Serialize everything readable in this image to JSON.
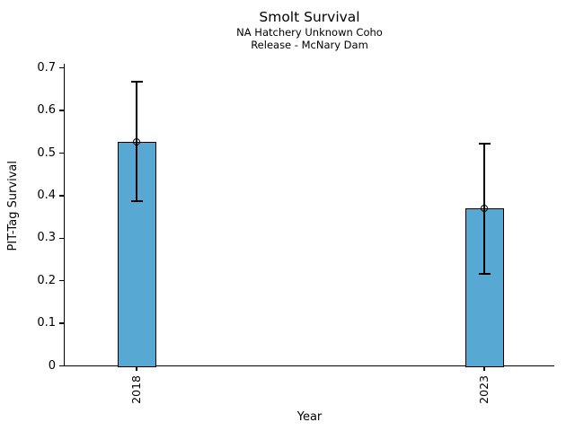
{
  "chart_data": {
    "type": "bar",
    "title": "Smolt Survival",
    "subtitle_lines": [
      "NA Hatchery Unknown Coho",
      "Release - McNary Dam"
    ],
    "xlabel": "Year",
    "ylabel": "PIT-Tag Survival",
    "categories": [
      "2018",
      "2023"
    ],
    "values": [
      0.527,
      0.37
    ],
    "error_low": [
      0.387,
      0.216
    ],
    "error_high": [
      0.668,
      0.522
    ],
    "ylim": [
      0,
      0.71
    ],
    "yticks": [
      0,
      0.1,
      0.2,
      0.3,
      0.4,
      0.5,
      0.6,
      0.7
    ],
    "ytick_labels": [
      "0",
      "0.1",
      "0.2",
      "0.3",
      "0.4",
      "0.5",
      "0.6",
      "0.7"
    ],
    "grid": false,
    "legend_position": "none",
    "bar_color": "#57a9d3",
    "bar_edge_color": "#000000",
    "errorbar_color": "#000000",
    "marker": "open-circle"
  }
}
